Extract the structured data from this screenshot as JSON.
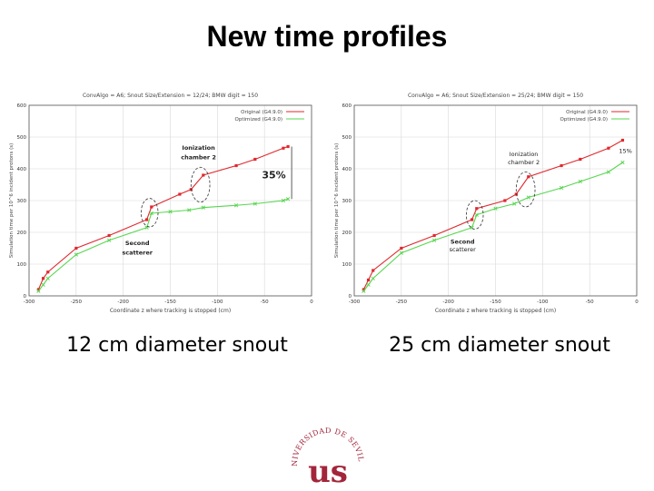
{
  "slide": {
    "title": "New time profiles",
    "caption_left": "12 cm diameter snout",
    "caption_right": "25 cm diameter snout",
    "logo_text": "UNIVERSIDAD DE SEVILLA",
    "logo_letters": "us"
  },
  "colors": {
    "original": "#e0282d",
    "optimized": "#57d64f",
    "grid": "#d8d8d8",
    "axis": "#555555",
    "logo": "#a3253b"
  },
  "chart_data": [
    {
      "type": "line",
      "title": "ConvAlgo = A6; Snout Size/Extension = 12/24; BMW digit = 150",
      "xlabel": "Coordinate z where tracking is stopped (cm)",
      "ylabel": "Simulation time per 10^6 incident protons (s)",
      "xlim": [
        -300,
        0
      ],
      "ylim": [
        0,
        600
      ],
      "xticks": [
        -300,
        -250,
        -200,
        -150,
        -100,
        -50,
        0
      ],
      "yticks": [
        0,
        100,
        200,
        300,
        400,
        500,
        600
      ],
      "grid": true,
      "legend_position": "top-right",
      "series": [
        {
          "name": "Original (G4.9.0)",
          "x": [
            -290,
            -285,
            -280,
            -250,
            -215,
            -175,
            -170,
            -140,
            -128,
            -115,
            -80,
            -60,
            -30,
            -25
          ],
          "y": [
            20,
            55,
            75,
            150,
            190,
            240,
            280,
            320,
            335,
            380,
            410,
            430,
            465,
            470
          ]
        },
        {
          "name": "Optimized (G4.9.0)",
          "x": [
            -290,
            -285,
            -280,
            -250,
            -215,
            -175,
            -170,
            -150,
            -130,
            -115,
            -80,
            -60,
            -30,
            -25
          ],
          "y": [
            15,
            35,
            55,
            130,
            175,
            215,
            260,
            265,
            270,
            278,
            285,
            290,
            300,
            305
          ]
        }
      ],
      "annotations": [
        {
          "text": "Ionization",
          "x": -120,
          "y": 460,
          "bold": true
        },
        {
          "text": "chamber 2",
          "x": -120,
          "y": 430,
          "bold": true
        },
        {
          "text": "35%",
          "x": -40,
          "y": 370,
          "bold": true,
          "large": true
        },
        {
          "text": "Second",
          "x": -185,
          "y": 160,
          "bold": true
        },
        {
          "text": "scatterer",
          "x": -185,
          "y": 130,
          "bold": true
        }
      ],
      "ellipses": [
        {
          "cx": -172,
          "cy": 262,
          "rx": 9,
          "ry": 45
        },
        {
          "cx": -118,
          "cy": 350,
          "rx": 10,
          "ry": 55
        }
      ],
      "bracket": {
        "x": -25,
        "y1": 305,
        "y2": 470
      }
    },
    {
      "type": "line",
      "title": "ConvAlgo = A6; Snout Size/Extension = 25/24; BMW digit = 150",
      "xlabel": "Coordinate z where tracking is stopped (cm)",
      "ylabel": "Simulation time per 10^6 incident protons (s)",
      "xlim": [
        -300,
        0
      ],
      "ylim": [
        0,
        600
      ],
      "xticks": [
        -300,
        -250,
        -200,
        -150,
        -100,
        -50,
        0
      ],
      "yticks": [
        0,
        100,
        200,
        300,
        400,
        500,
        600
      ],
      "grid": true,
      "legend_position": "top-right",
      "series": [
        {
          "name": "Original (G4.9.0)",
          "x": [
            -290,
            -285,
            -280,
            -250,
            -215,
            -175,
            -170,
            -140,
            -128,
            -115,
            -80,
            -60,
            -30,
            -15
          ],
          "y": [
            20,
            50,
            80,
            150,
            190,
            240,
            275,
            300,
            320,
            375,
            410,
            430,
            465,
            490
          ]
        },
        {
          "name": "Optimized (G4.9.0)",
          "x": [
            -290,
            -285,
            -280,
            -250,
            -215,
            -175,
            -170,
            -150,
            -130,
            -115,
            -80,
            -60,
            -30,
            -15
          ],
          "y": [
            15,
            35,
            55,
            135,
            175,
            215,
            255,
            275,
            290,
            310,
            340,
            360,
            390,
            420
          ]
        }
      ],
      "annotations": [
        {
          "text": "Ionization",
          "x": -120,
          "y": 440,
          "bold": false
        },
        {
          "text": "chamber 2",
          "x": -120,
          "y": 415,
          "bold": false
        },
        {
          "text": "15%",
          "x": -12,
          "y": 450,
          "bold": false
        },
        {
          "text": "Second",
          "x": -185,
          "y": 165,
          "bold": true
        },
        {
          "text": "scatterer",
          "x": -185,
          "y": 140,
          "bold": false
        }
      ],
      "ellipses": [
        {
          "cx": -172,
          "cy": 255,
          "rx": 9,
          "ry": 45
        },
        {
          "cx": -118,
          "cy": 335,
          "rx": 10,
          "ry": 55
        }
      ],
      "bracket": null
    }
  ]
}
